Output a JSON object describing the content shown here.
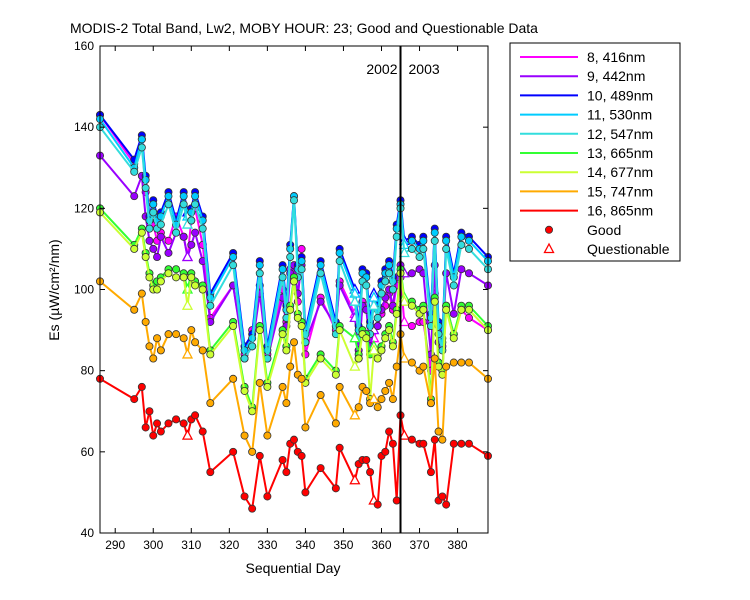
{
  "chart_data": {
    "type": "line",
    "title": "MODIS-2 Total Band,  Lw2, MOBY HOUR: 23;  Good and Questionable Data",
    "xlabel": "Sequential Day",
    "ylabel": "Es (µW/cm²/nm)",
    "xlim": [
      286,
      388
    ],
    "ylim": [
      40,
      160
    ],
    "xticks": [
      290,
      300,
      310,
      320,
      330,
      340,
      350,
      360,
      370,
      380
    ],
    "yticks": [
      40,
      60,
      80,
      100,
      120,
      140,
      160
    ],
    "grid": false,
    "legend_position": "right, outside plot",
    "year_boundary": {
      "x": 365,
      "labels": [
        "2002",
        "2003"
      ]
    },
    "legend_markers": {
      "good": "Good",
      "questionable": "Questionable"
    },
    "x": [
      286,
      295,
      297,
      298,
      299,
      300,
      301,
      302,
      304,
      306,
      308,
      309,
      310,
      311,
      313,
      315,
      321,
      324,
      326,
      328,
      330,
      334,
      335,
      336,
      337,
      338,
      339,
      340,
      344,
      348,
      349,
      353,
      354,
      355,
      356,
      357,
      358,
      359,
      360,
      361,
      362,
      363,
      364,
      365,
      366,
      368,
      370,
      371,
      373,
      374,
      375,
      376,
      377,
      379,
      381,
      383,
      388
    ],
    "questionable_x": [
      309,
      353,
      358,
      366,
      380
    ],
    "series": [
      {
        "name": "8, 416nm",
        "color": "#ff00ff",
        "values": [
          143,
          131,
          137,
          124,
          118,
          116,
          112,
          114,
          112,
          118,
          113,
          108,
          117,
          120,
          111,
          93,
          101,
          84,
          90,
          101,
          84,
          100,
          92,
          105,
          104,
          97,
          110,
          84,
          98,
          90,
          102,
          94,
          83,
          97,
          96,
          85,
          88,
          91,
          94,
          96,
          99,
          95,
          101,
          103,
          92,
          91,
          92,
          92,
          80,
          99,
          82,
          80,
          96,
          89,
          95,
          93,
          90
        ]
      },
      {
        "name": "9, 442nm",
        "color": "#9900ff",
        "values": [
          133,
          123,
          128,
          118,
          112,
          110,
          108,
          113,
          109,
          114,
          113,
          108,
          111,
          114,
          107,
          92,
          101,
          83,
          86,
          99,
          83,
          98,
          91,
          104,
          106,
          99,
          106,
          87,
          97,
          91,
          101,
          93,
          85,
          96,
          95,
          86,
          90,
          91,
          95,
          98,
          100,
          96,
          103,
          106,
          104,
          104,
          105,
          104,
          84,
          106,
          87,
          86,
          104,
          94,
          105,
          104,
          101
        ]
      },
      {
        "name": "10, 489nm",
        "color": "#0000ff",
        "values": [
          143,
          132,
          138,
          128,
          118,
          122,
          118,
          119,
          124,
          117,
          124,
          119,
          120,
          124,
          118,
          99,
          109,
          86,
          89,
          107,
          86,
          106,
          96,
          111,
          123,
          106,
          108,
          90,
          107,
          92,
          110,
          100,
          91,
          105,
          104,
          92,
          99,
          96,
          102,
          105,
          107,
          103,
          116,
          122,
          112,
          113,
          111,
          113,
          94,
          115,
          92,
          88,
          113,
          104,
          114,
          113,
          108
        ]
      },
      {
        "name": "11, 530nm",
        "color": "#00ccff",
        "values": [
          142,
          130,
          137,
          127,
          117,
          121,
          117,
          118,
          123,
          116,
          123,
          118,
          119,
          123,
          117,
          98,
          108,
          85,
          88,
          106,
          85,
          105,
          95,
          110,
          123,
          105,
          107,
          89,
          106,
          91,
          109,
          99,
          90,
          104,
          103,
          91,
          98,
          95,
          101,
          104,
          106,
          102,
          115,
          121,
          111,
          112,
          110,
          112,
          93,
          114,
          91,
          87,
          112,
          103,
          113,
          112,
          107
        ]
      },
      {
        "name": "12, 547nm",
        "color": "#33dddd",
        "values": [
          140,
          129,
          135,
          125,
          115,
          119,
          115,
          116,
          121,
          114,
          121,
          116,
          117,
          121,
          115,
          96,
          106,
          83,
          86,
          104,
          83,
          103,
          93,
          108,
          122,
          103,
          105,
          87,
          104,
          89,
          107,
          97,
          88,
          102,
          101,
          89,
          96,
          93,
          99,
          102,
          104,
          100,
          113,
          120,
          109,
          110,
          108,
          110,
          91,
          112,
          89,
          85,
          110,
          101,
          111,
          110,
          105
        ]
      },
      {
        "name": "13, 665nm",
        "color": "#33ff33",
        "values": [
          120,
          111,
          115,
          109,
          104,
          101,
          102,
          103,
          105,
          105,
          104,
          100,
          104,
          102,
          101,
          85,
          92,
          76,
          71,
          91,
          77,
          90,
          86,
          96,
          103,
          94,
          92,
          78,
          84,
          80,
          91,
          88,
          84,
          90,
          89,
          84,
          86,
          84,
          86,
          89,
          91,
          87,
          95,
          105,
          98,
          97,
          95,
          96,
          73,
          98,
          82,
          80,
          96,
          89,
          96,
          96,
          91
        ]
      },
      {
        "name": "14, 677nm",
        "color": "#ccff33",
        "values": [
          119,
          110,
          114,
          108,
          103,
          100,
          100,
          102,
          104,
          103,
          103,
          96,
          103,
          101,
          100,
          84,
          91,
          75,
          70,
          90,
          76,
          89,
          85,
          95,
          102,
          93,
          91,
          77,
          83,
          79,
          90,
          81,
          83,
          89,
          88,
          73,
          85,
          83,
          85,
          88,
          90,
          86,
          94,
          104,
          97,
          96,
          94,
          95,
          72,
          97,
          81,
          79,
          95,
          88,
          95,
          95,
          90
        ]
      },
      {
        "name": "15, 747nm",
        "color": "#ffaa00",
        "values": [
          102,
          95,
          99,
          92,
          86,
          83,
          88,
          85,
          89,
          89,
          88,
          84,
          90,
          87,
          85,
          72,
          78,
          64,
          60,
          77,
          64,
          76,
          72,
          81,
          87,
          79,
          78,
          66,
          74,
          67,
          76,
          69,
          71,
          76,
          75,
          72,
          73,
          71,
          73,
          75,
          77,
          73,
          81,
          89,
          83,
          82,
          80,
          81,
          72,
          83,
          65,
          63,
          81,
          82,
          82,
          82,
          78
        ]
      },
      {
        "name": "16, 865nm",
        "color": "#ff0000",
        "values": [
          78,
          73,
          76,
          66,
          70,
          64,
          67,
          65,
          67,
          68,
          67,
          64,
          68,
          69,
          65,
          55,
          60,
          49,
          46,
          59,
          49,
          58,
          55,
          62,
          63,
          60,
          59,
          50,
          56,
          51,
          61,
          53,
          57,
          58,
          58,
          55,
          48,
          47,
          59,
          60,
          65,
          62,
          48,
          69,
          64,
          63,
          62,
          62,
          55,
          63,
          48,
          49,
          47,
          62,
          62,
          62,
          59
        ]
      }
    ]
  }
}
